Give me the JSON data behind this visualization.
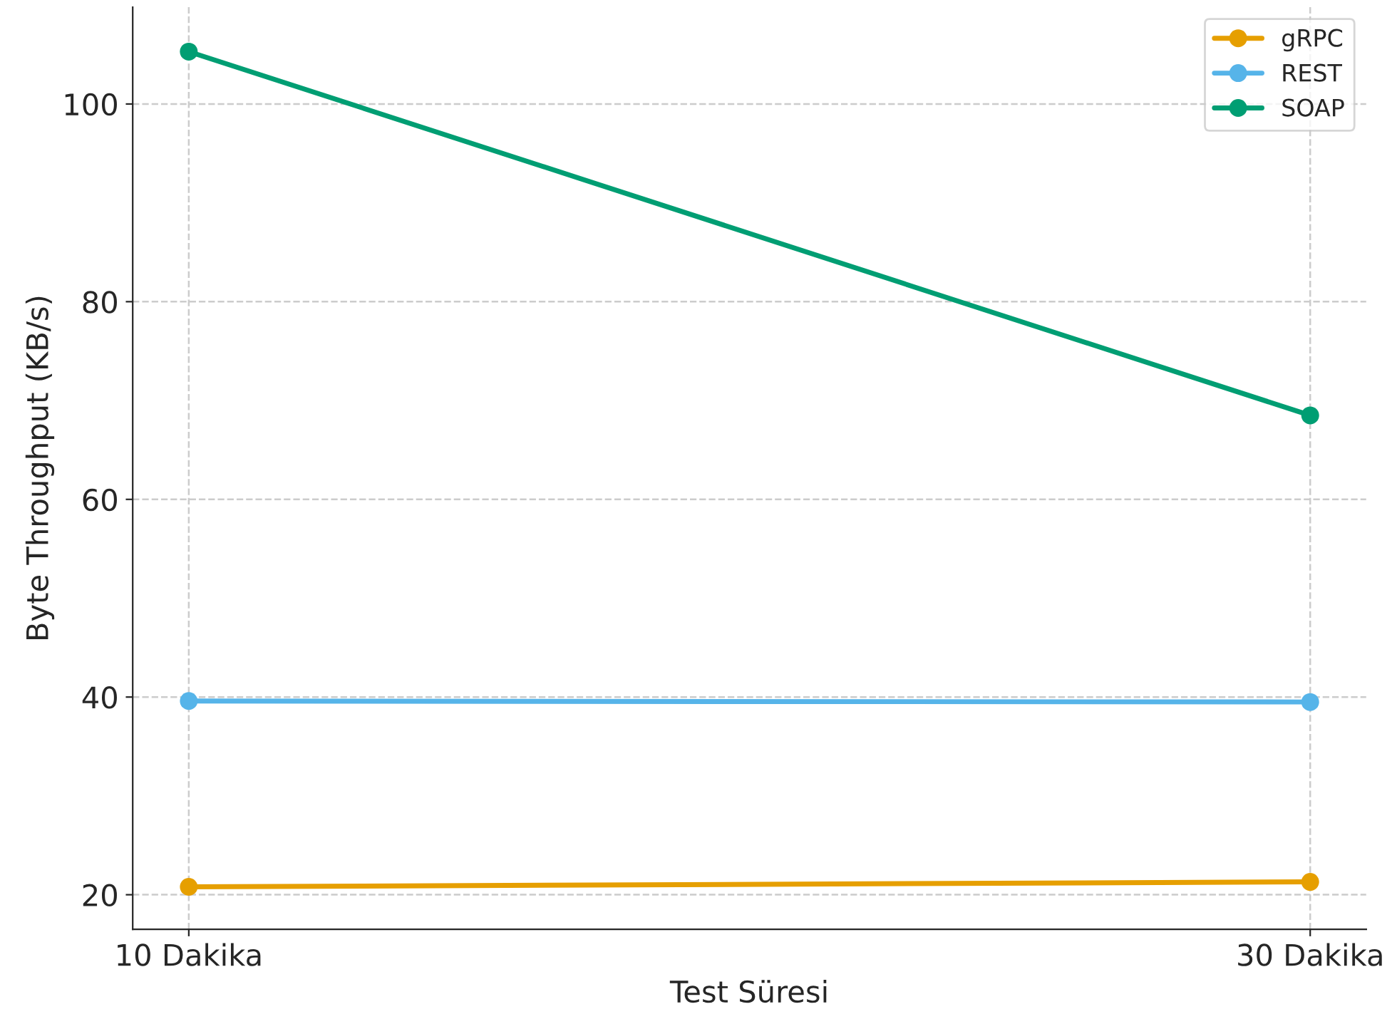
{
  "chart_data": {
    "type": "line",
    "xlabel": "Test Süresi",
    "ylabel": "Byte Throughput (KB/s)",
    "x": [
      10,
      30
    ],
    "series": [
      {
        "name": "gRPC",
        "color": "#e69f00",
        "values": [
          20.8,
          21.3
        ]
      },
      {
        "name": "REST",
        "color": "#56b4e9",
        "values": [
          39.6,
          39.5
        ]
      },
      {
        "name": "SOAP",
        "color": "#009e73",
        "values": [
          105.3,
          68.5
        ]
      }
    ],
    "xlim": [
      9,
      31
    ],
    "xticks": [
      {
        "value": 10,
        "label": "10 Dakika"
      },
      {
        "value": 30,
        "label": "30 Dakika"
      }
    ],
    "ylim": [
      16.5,
      109.8
    ],
    "yticks": [
      20,
      40,
      60,
      80,
      100
    ],
    "grid": true,
    "legend": "top right",
    "marker": "circle",
    "line_style": "solid"
  }
}
